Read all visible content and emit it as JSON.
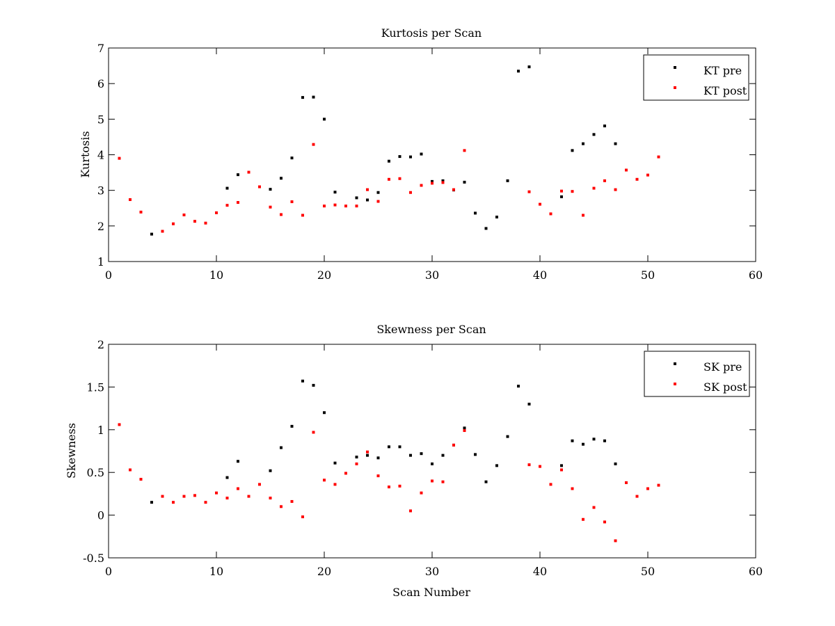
{
  "colors": {
    "pre": "#000000",
    "post": "#ff0000",
    "axis": "#000000",
    "background": "#ffffff"
  },
  "chart_data": [
    {
      "type": "scatter",
      "title": "Kurtosis per Scan",
      "xlabel": "",
      "ylabel": "Kurtosis",
      "xlim": [
        0,
        60
      ],
      "ylim": [
        1,
        7
      ],
      "xticks": [
        "0",
        "10",
        "20",
        "30",
        "40",
        "50",
        "60"
      ],
      "yticks": [
        "1",
        "2",
        "3",
        "4",
        "5",
        "6",
        "7"
      ],
      "grid": false,
      "legend_position": "top-right",
      "series": [
        {
          "name": "KT pre",
          "color": "#000000",
          "x": [
            4,
            11,
            12,
            15,
            16,
            17,
            18,
            19,
            20,
            21,
            23,
            24,
            25,
            26,
            27,
            28,
            29,
            30,
            31,
            32,
            33,
            34,
            35,
            36,
            37,
            38,
            39,
            42,
            43,
            44,
            45,
            46,
            47
          ],
          "y": [
            1.77,
            3.06,
            3.44,
            3.03,
            3.34,
            3.91,
            5.61,
            5.62,
            5.0,
            2.95,
            2.79,
            2.73,
            2.94,
            3.82,
            3.95,
            3.94,
            4.02,
            3.25,
            3.27,
            3.01,
            3.23,
            2.36,
            1.93,
            2.25,
            3.27,
            6.35,
            6.47,
            2.82,
            4.12,
            4.31,
            4.57,
            4.81,
            4.31
          ]
        },
        {
          "name": "KT post",
          "color": "#ff0000",
          "x": [
            1,
            2,
            3,
            5,
            6,
            7,
            8,
            9,
            10,
            11,
            12,
            13,
            14,
            15,
            16,
            17,
            18,
            19,
            20,
            21,
            22,
            23,
            24,
            25,
            26,
            27,
            28,
            29,
            30,
            31,
            32,
            33,
            39,
            40,
            41,
            42,
            43,
            44,
            45,
            46,
            47,
            48,
            49,
            50,
            51
          ],
          "y": [
            3.9,
            2.74,
            2.39,
            1.85,
            2.06,
            2.31,
            2.13,
            2.08,
            2.37,
            2.58,
            2.66,
            3.51,
            3.1,
            2.53,
            2.32,
            2.68,
            2.3,
            4.29,
            2.56,
            2.59,
            2.56,
            2.56,
            3.02,
            2.69,
            3.31,
            3.33,
            2.94,
            3.14,
            3.2,
            3.22,
            3.02,
            4.12,
            2.96,
            2.61,
            2.34,
            2.98,
            2.97,
            2.3,
            3.06,
            3.27,
            3.02,
            3.57,
            3.31,
            3.43,
            3.94
          ]
        }
      ]
    },
    {
      "type": "scatter",
      "title": "Skewness per Scan",
      "xlabel": "Scan Number",
      "ylabel": "Skewness",
      "xlim": [
        0,
        60
      ],
      "ylim": [
        -0.5,
        2
      ],
      "xticks": [
        "0",
        "10",
        "20",
        "30",
        "40",
        "50",
        "60"
      ],
      "yticks": [
        "-0.5",
        "0",
        "0.5",
        "1",
        "1.5",
        "2"
      ],
      "grid": false,
      "legend_position": "top-right",
      "series": [
        {
          "name": "SK pre",
          "color": "#000000",
          "x": [
            4,
            11,
            12,
            15,
            16,
            17,
            18,
            19,
            20,
            21,
            23,
            24,
            25,
            26,
            27,
            28,
            29,
            30,
            31,
            32,
            33,
            34,
            35,
            36,
            37,
            38,
            39,
            42,
            43,
            44,
            45,
            46,
            47
          ],
          "y": [
            0.15,
            0.44,
            0.63,
            0.52,
            0.79,
            1.04,
            1.57,
            1.52,
            1.2,
            0.61,
            0.68,
            0.7,
            0.67,
            0.8,
            0.8,
            0.7,
            0.72,
            0.6,
            0.7,
            0.82,
            1.02,
            0.71,
            0.39,
            0.58,
            0.92,
            1.51,
            1.3,
            0.58,
            0.87,
            0.83,
            0.89,
            0.87,
            0.6
          ]
        },
        {
          "name": "SK post",
          "color": "#ff0000",
          "x": [
            1,
            2,
            3,
            5,
            6,
            7,
            8,
            9,
            10,
            11,
            12,
            13,
            14,
            15,
            16,
            17,
            18,
            19,
            20,
            21,
            22,
            23,
            24,
            25,
            26,
            27,
            28,
            29,
            30,
            31,
            32,
            33,
            39,
            40,
            41,
            42,
            43,
            44,
            45,
            46,
            47,
            48,
            49,
            50,
            51
          ],
          "y": [
            1.06,
            0.53,
            0.42,
            0.22,
            0.15,
            0.22,
            0.23,
            0.15,
            0.26,
            0.2,
            0.31,
            0.22,
            0.36,
            0.2,
            0.1,
            0.16,
            -0.02,
            0.97,
            0.41,
            0.36,
            0.49,
            0.6,
            0.74,
            0.46,
            0.33,
            0.34,
            0.05,
            0.26,
            0.4,
            0.39,
            0.82,
            0.99,
            0.59,
            0.57,
            0.36,
            0.53,
            0.31,
            -0.05,
            0.09,
            -0.08,
            -0.3,
            0.38,
            0.22,
            0.31,
            0.35
          ]
        }
      ]
    }
  ]
}
